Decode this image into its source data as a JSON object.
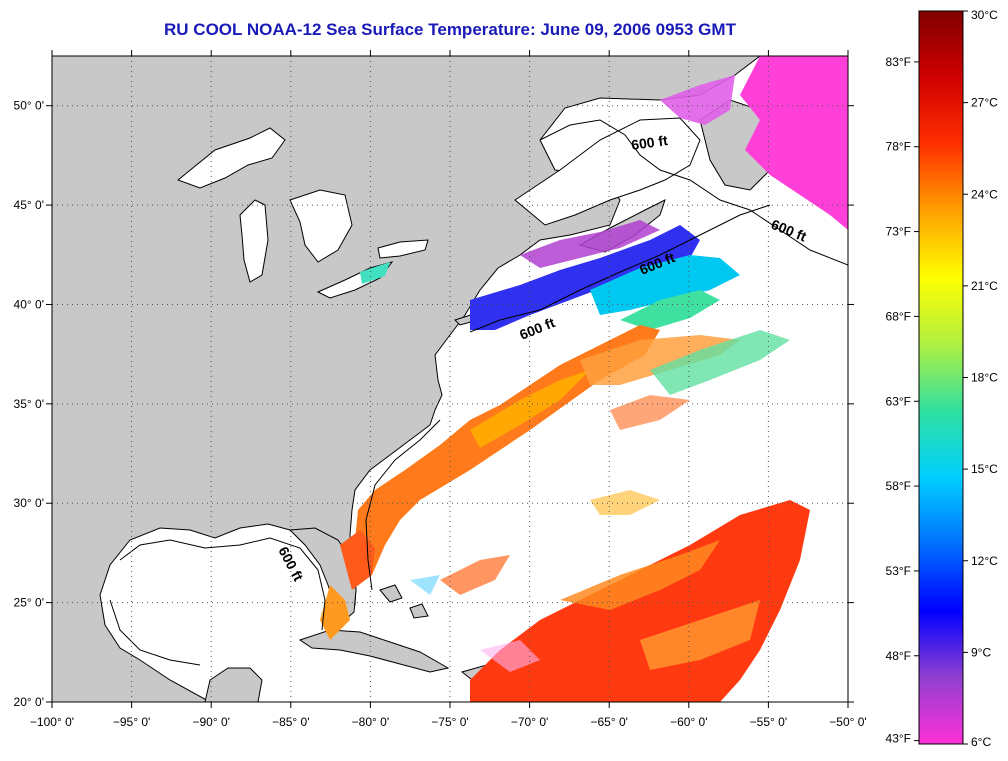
{
  "title": "RU COOL  NOAA-12  Sea Surface Temperature:  June 09, 2006 0953 GMT",
  "map": {
    "lon_range": [
      -100,
      -50
    ],
    "lat_range": [
      20,
      52.5
    ],
    "lat_ticks": [
      {
        "value": 50,
        "label": "50° 0'"
      },
      {
        "value": 45,
        "label": "45° 0'"
      },
      {
        "value": 40,
        "label": "40° 0'"
      },
      {
        "value": 35,
        "label": "35° 0'"
      },
      {
        "value": 30,
        "label": "30° 0'"
      },
      {
        "value": 25,
        "label": "25° 0'"
      },
      {
        "value": 20,
        "label": "20° 0'"
      }
    ],
    "lon_ticks": [
      {
        "value": -100,
        "label": "−100° 0'"
      },
      {
        "value": -95,
        "label": "−95° 0'"
      },
      {
        "value": -90,
        "label": "−90° 0'"
      },
      {
        "value": -85,
        "label": "−85° 0'"
      },
      {
        "value": -80,
        "label": "−80° 0'"
      },
      {
        "value": -75,
        "label": "−75° 0'"
      },
      {
        "value": -70,
        "label": "−70° 0'"
      },
      {
        "value": -65,
        "label": "−65° 0'"
      },
      {
        "value": -60,
        "label": "−60° 0'"
      },
      {
        "value": -55,
        "label": "−55° 0'"
      },
      {
        "value": -50,
        "label": "−50° 0'"
      }
    ],
    "isobath_labels": [
      "600 ft",
      "600 ft",
      "600 ft",
      "600 ft",
      "600 ft"
    ],
    "colors": {
      "land": "#c8c8c8",
      "ocean_no_data": "#ffffff",
      "title": "#1a1ab8"
    }
  },
  "legend": {
    "celsius_labels": [
      "30°C",
      "27°C",
      "24°C",
      "21°C",
      "18°C",
      "15°C",
      "12°C",
      "9°C",
      "6°C"
    ],
    "fahrenheit_labels": [
      "83°F",
      "78°F",
      "73°F",
      "68°F",
      "63°F",
      "58°F",
      "53°F",
      "48°F",
      "43°F"
    ],
    "fahrenheit_values": [
      83,
      78,
      73,
      68,
      63,
      58,
      53,
      48,
      43
    ],
    "range_c": [
      6,
      30
    ],
    "colors": [
      "#ff30d8",
      "#9040d0",
      "#0000ff",
      "#0070ff",
      "#00d0ff",
      "#30e0a0",
      "#b0f040",
      "#ffff00",
      "#ffa000",
      "#ff3000",
      "#d00000",
      "#800000"
    ]
  }
}
